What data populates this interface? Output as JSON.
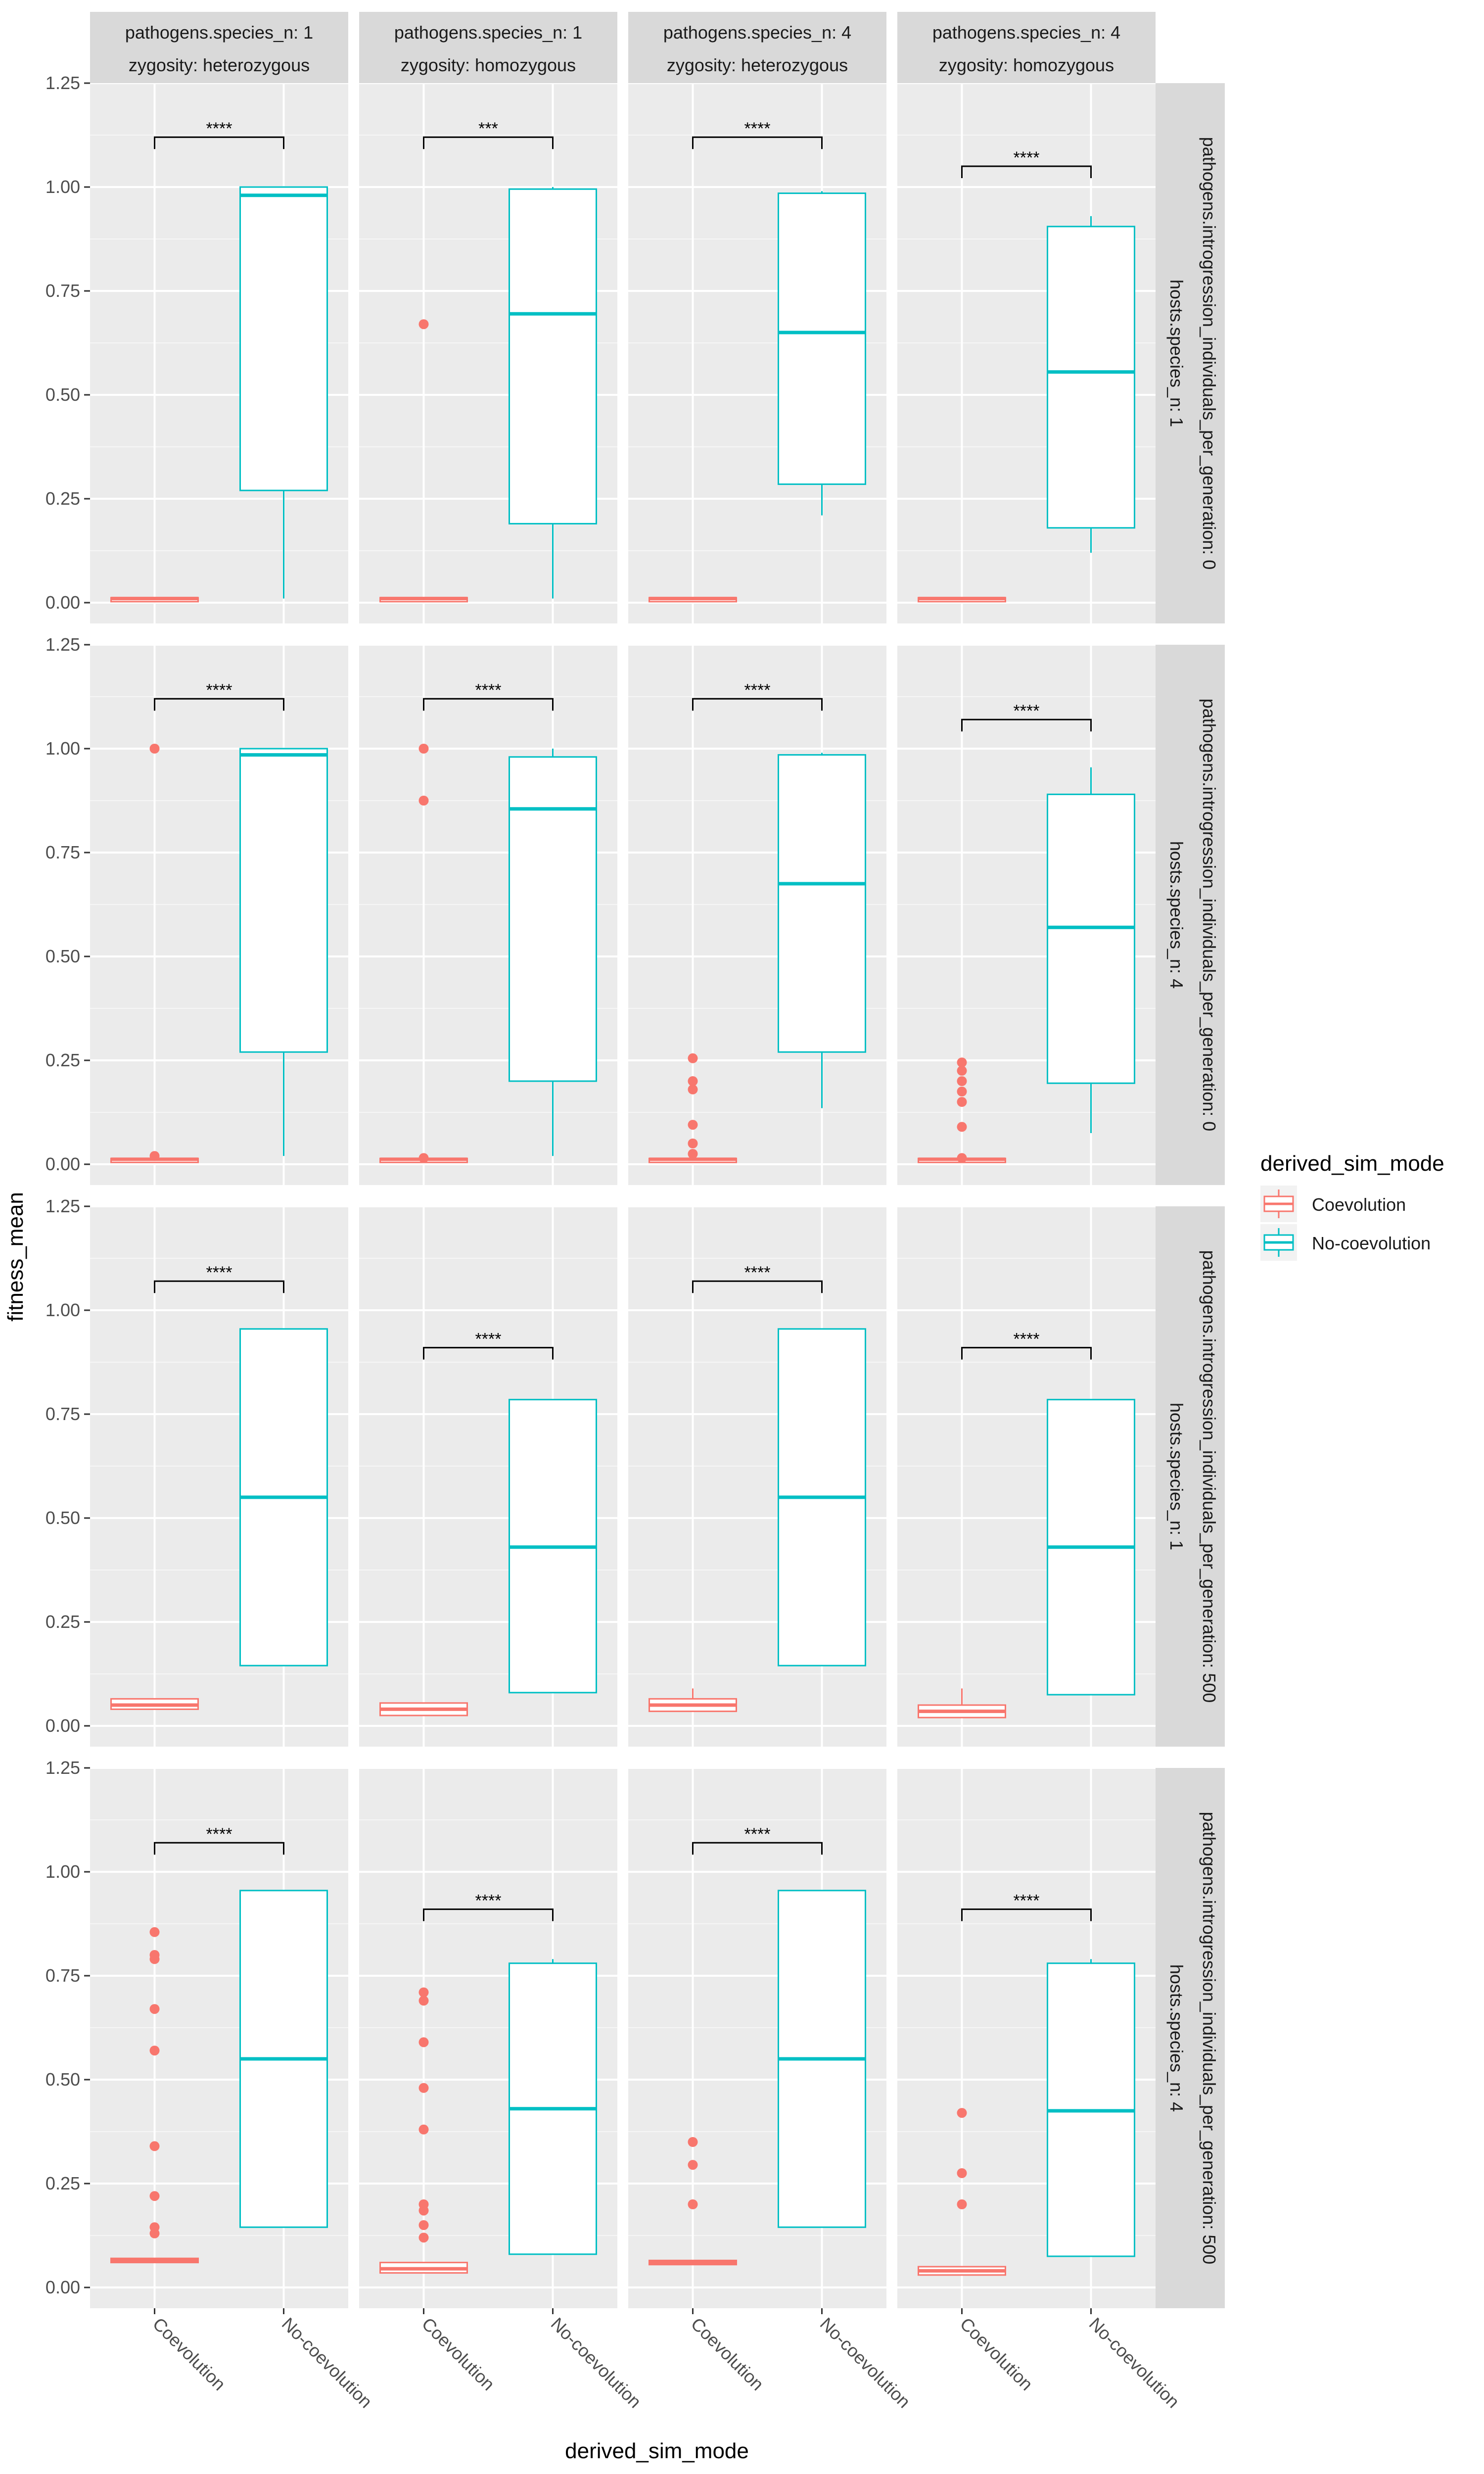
{
  "chart_data": {
    "type": "box",
    "xlabel": "derived_sim_mode",
    "ylabel": "fitness_mean",
    "ylim": [
      -0.05,
      1.25
    ],
    "yticks": [
      0.0,
      0.25,
      0.5,
      0.75,
      1.0,
      1.25
    ],
    "ytick_labels": [
      "0.00",
      "0.25",
      "0.50",
      "0.75",
      "1.00",
      "1.25"
    ],
    "categories": [
      "Coevolution",
      "No-coevolution"
    ],
    "legend": {
      "title": "derived_sim_mode",
      "position": "right",
      "entries": [
        {
          "name": "Coevolution",
          "color": "#F8766D"
        },
        {
          "name": "No-coevolution",
          "color": "#00BFC4"
        }
      ]
    },
    "column_strips": [
      {
        "line1": "pathogens.species_n: 1",
        "line2": "zygosity: heterozygous"
      },
      {
        "line1": "pathogens.species_n: 1",
        "line2": "zygosity: homozygous"
      },
      {
        "line1": "pathogens.species_n: 4",
        "line2": "zygosity: heterozygous"
      },
      {
        "line1": "pathogens.species_n: 4",
        "line2": "zygosity: homozygous"
      }
    ],
    "row_strips": [
      {
        "line1": "pathogens.introgression_individuals_per_generation: 0",
        "line2": "hosts.species_n: 1"
      },
      {
        "line1": "pathogens.introgression_individuals_per_generation: 0",
        "line2": "hosts.species_n: 4"
      },
      {
        "line1": "pathogens.introgression_individuals_per_generation: 500",
        "line2": "hosts.species_n: 1"
      },
      {
        "line1": "pathogens.introgression_individuals_per_generation: 500",
        "line2": "hosts.species_n: 4"
      }
    ],
    "panels": [
      [
        {
          "sig": "****",
          "sig_y": 1.12,
          "coev": {
            "q1": 0.01,
            "med": 0.01,
            "q3": 0.012,
            "lo": 0.01,
            "hi": 0.012,
            "out": []
          },
          "noco": {
            "q1": 0.27,
            "med": 0.98,
            "q3": 1.0,
            "lo": 0.01,
            "hi": 1.0,
            "out": []
          }
        },
        {
          "sig": "***",
          "sig_y": 1.12,
          "coev": {
            "q1": 0.01,
            "med": 0.01,
            "q3": 0.012,
            "lo": 0.01,
            "hi": 0.012,
            "out": [
              0.67
            ]
          },
          "noco": {
            "q1": 0.19,
            "med": 0.695,
            "q3": 0.995,
            "lo": 0.01,
            "hi": 1.0,
            "out": []
          }
        },
        {
          "sig": "****",
          "sig_y": 1.12,
          "coev": {
            "q1": 0.01,
            "med": 0.01,
            "q3": 0.012,
            "lo": 0.01,
            "hi": 0.012,
            "out": []
          },
          "noco": {
            "q1": 0.285,
            "med": 0.65,
            "q3": 0.985,
            "lo": 0.21,
            "hi": 0.99,
            "out": []
          }
        },
        {
          "sig": "****",
          "sig_y": 1.05,
          "coev": {
            "q1": 0.01,
            "med": 0.01,
            "q3": 0.012,
            "lo": 0.01,
            "hi": 0.012,
            "out": []
          },
          "noco": {
            "q1": 0.18,
            "med": 0.555,
            "q3": 0.905,
            "lo": 0.12,
            "hi": 0.93,
            "out": []
          }
        }
      ],
      [
        {
          "sig": "****",
          "sig_y": 1.12,
          "coev": {
            "q1": 0.01,
            "med": 0.012,
            "q3": 0.014,
            "lo": 0.01,
            "hi": 0.014,
            "out": [
              1.0,
              0.02
            ]
          },
          "noco": {
            "q1": 0.27,
            "med": 0.985,
            "q3": 1.0,
            "lo": 0.02,
            "hi": 1.0,
            "out": []
          }
        },
        {
          "sig": "****",
          "sig_y": 1.12,
          "coev": {
            "q1": 0.01,
            "med": 0.012,
            "q3": 0.014,
            "lo": 0.01,
            "hi": 0.014,
            "out": [
              1.0,
              0.875,
              0.015
            ]
          },
          "noco": {
            "q1": 0.2,
            "med": 0.855,
            "q3": 0.98,
            "lo": 0.02,
            "hi": 1.0,
            "out": []
          }
        },
        {
          "sig": "****",
          "sig_y": 1.12,
          "coev": {
            "q1": 0.01,
            "med": 0.012,
            "q3": 0.014,
            "lo": 0.01,
            "hi": 0.014,
            "out": [
              0.255,
              0.2,
              0.18,
              0.095,
              0.05,
              0.025
            ]
          },
          "noco": {
            "q1": 0.27,
            "med": 0.675,
            "q3": 0.985,
            "lo": 0.135,
            "hi": 0.99,
            "out": []
          }
        },
        {
          "sig": "****",
          "sig_y": 1.07,
          "coev": {
            "q1": 0.01,
            "med": 0.012,
            "q3": 0.014,
            "lo": 0.01,
            "hi": 0.014,
            "out": [
              0.245,
              0.225,
              0.2,
              0.175,
              0.15,
              0.09,
              0.015
            ]
          },
          "noco": {
            "q1": 0.195,
            "med": 0.57,
            "q3": 0.89,
            "lo": 0.075,
            "hi": 0.955,
            "out": []
          }
        }
      ],
      [
        {
          "sig": "****",
          "sig_y": 1.07,
          "coev": {
            "q1": 0.04,
            "med": 0.05,
            "q3": 0.065,
            "lo": 0.04,
            "hi": 0.065,
            "out": []
          },
          "noco": {
            "q1": 0.145,
            "med": 0.55,
            "q3": 0.955,
            "lo": 0.145,
            "hi": 0.955,
            "out": []
          }
        },
        {
          "sig": "****",
          "sig_y": 0.91,
          "coev": {
            "q1": 0.025,
            "med": 0.04,
            "q3": 0.055,
            "lo": 0.025,
            "hi": 0.055,
            "out": []
          },
          "noco": {
            "q1": 0.08,
            "med": 0.43,
            "q3": 0.785,
            "lo": 0.08,
            "hi": 0.785,
            "out": []
          }
        },
        {
          "sig": "****",
          "sig_y": 1.07,
          "coev": {
            "q1": 0.035,
            "med": 0.05,
            "q3": 0.065,
            "lo": 0.035,
            "hi": 0.09,
            "out": []
          },
          "noco": {
            "q1": 0.145,
            "med": 0.55,
            "q3": 0.955,
            "lo": 0.145,
            "hi": 0.955,
            "out": []
          }
        },
        {
          "sig": "****",
          "sig_y": 0.91,
          "coev": {
            "q1": 0.02,
            "med": 0.035,
            "q3": 0.05,
            "lo": 0.02,
            "hi": 0.09,
            "out": []
          },
          "noco": {
            "q1": 0.075,
            "med": 0.43,
            "q3": 0.785,
            "lo": 0.075,
            "hi": 0.785,
            "out": []
          }
        }
      ],
      [
        {
          "sig": "****",
          "sig_y": 1.07,
          "coev": {
            "q1": 0.06,
            "med": 0.065,
            "q3": 0.07,
            "lo": 0.06,
            "hi": 0.07,
            "out": [
              0.855,
              0.8,
              0.79,
              0.67,
              0.57,
              0.34,
              0.22,
              0.145,
              0.13
            ]
          },
          "noco": {
            "q1": 0.145,
            "med": 0.55,
            "q3": 0.955,
            "lo": 0.145,
            "hi": 0.955,
            "out": []
          }
        },
        {
          "sig": "****",
          "sig_y": 0.91,
          "coev": {
            "q1": 0.035,
            "med": 0.045,
            "q3": 0.06,
            "lo": 0.035,
            "hi": 0.06,
            "out": [
              0.71,
              0.69,
              0.59,
              0.48,
              0.38,
              0.2,
              0.185,
              0.15,
              0.12
            ]
          },
          "noco": {
            "q1": 0.08,
            "med": 0.43,
            "q3": 0.78,
            "lo": 0.08,
            "hi": 0.79,
            "out": []
          }
        },
        {
          "sig": "****",
          "sig_y": 1.07,
          "coev": {
            "q1": 0.055,
            "med": 0.06,
            "q3": 0.065,
            "lo": 0.055,
            "hi": 0.065,
            "out": [
              0.35,
              0.295,
              0.2
            ]
          },
          "noco": {
            "q1": 0.145,
            "med": 0.55,
            "q3": 0.955,
            "lo": 0.145,
            "hi": 0.955,
            "out": []
          }
        },
        {
          "sig": "****",
          "sig_y": 0.91,
          "coev": {
            "q1": 0.03,
            "med": 0.04,
            "q3": 0.05,
            "lo": 0.03,
            "hi": 0.05,
            "out": [
              0.42,
              0.275,
              0.2
            ]
          },
          "noco": {
            "q1": 0.075,
            "med": 0.425,
            "q3": 0.78,
            "lo": 0.075,
            "hi": 0.79,
            "out": []
          }
        }
      ]
    ]
  }
}
